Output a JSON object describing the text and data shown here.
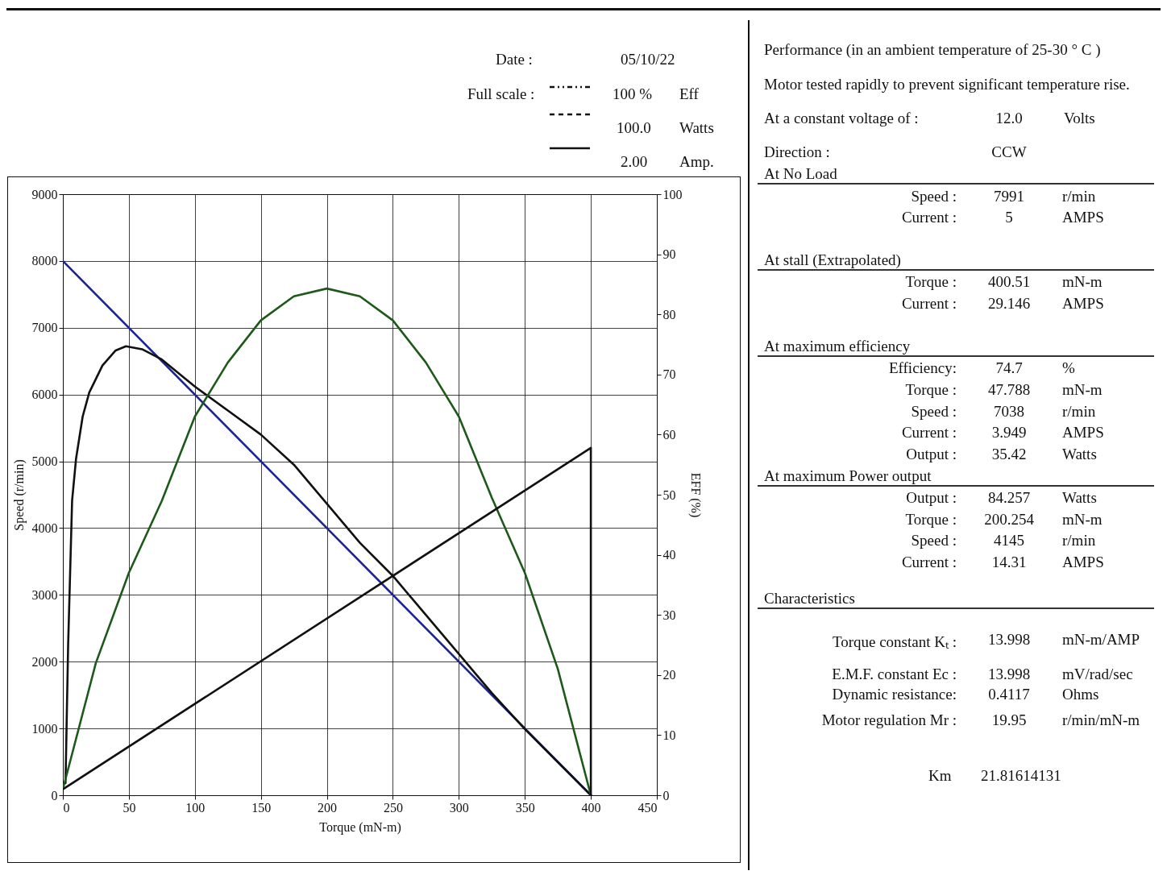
{
  "chart_data": [
    {
      "type": "line",
      "xlabel": "Torque (mN-m)",
      "ylabel": "Speed (r/min)",
      "y2label": "EFF (%)",
      "xlim": [
        0,
        450
      ],
      "xticks": [
        0,
        50,
        100,
        150,
        200,
        250,
        300,
        350,
        400,
        450
      ],
      "ylim": [
        0,
        9000
      ],
      "yticks": [
        0,
        1000,
        2000,
        3000,
        4000,
        5000,
        6000,
        7000,
        8000,
        9000
      ],
      "y2lim": [
        0,
        100
      ],
      "y2ticks": [
        0,
        10,
        20,
        30,
        40,
        50,
        60,
        70,
        80,
        90,
        100
      ],
      "grid": true,
      "annotations": [
        "Date  :",
        "05/10/22",
        "Full scale :",
        "100  %",
        "Eff",
        "100.0",
        "Watts",
        "2.00",
        "Amp."
      ],
      "series": [
        {
          "color": "#1c2596",
          "x": [
            0,
            400
          ],
          "values": [
            8000,
            0
          ]
        },
        {
          "color": "#111111",
          "axis": "y2",
          "x": [
            2,
            4,
            7,
            10,
            15,
            20,
            30,
            40,
            47.8,
            60,
            75,
            100,
            125,
            150,
            175,
            200,
            225,
            250,
            275,
            300,
            325,
            350,
            375,
            400
          ],
          "values": [
            2,
            25,
            49,
            56,
            63,
            67,
            71.5,
            74,
            74.7,
            74.2,
            72.5,
            68,
            64,
            60,
            55,
            48.5,
            42,
            36.5,
            30,
            23.5,
            17,
            11,
            5.5,
            0
          ]
        },
        {
          "color": "#1d5a1a",
          "axis": "y2",
          "x": [
            0,
            25,
            50,
            75,
            100,
            125,
            150,
            175,
            200,
            225,
            250,
            275,
            300,
            325,
            350,
            375,
            400
          ],
          "values": [
            1,
            22,
            37,
            49,
            63,
            72,
            79,
            83,
            84.3,
            83,
            79,
            72,
            63,
            49.5,
            37,
            21,
            0
          ]
        },
        {
          "color": "#111111",
          "axis": "y2",
          "x": [
            0,
            400,
            400
          ],
          "values": [
            1,
            57.8,
            0
          ]
        }
      ]
    },
    {
      "type": "other",
      "annotations": [
        "Performance (in an ambient temperature of 25-30 ° C )",
        "Motor tested rapidly to prevent significant temperature rise.",
        "At a constant voltage of :",
        "12.0",
        "Volts",
        "Direction  :",
        "CCW",
        "At No Load",
        "Speed  :",
        "7991",
        "r/min",
        "Current  :",
        "5",
        "AMPS",
        "At stall (Extrapolated)",
        "Torque  :",
        "400.51",
        "mN-m",
        "Current  :",
        "29.146",
        "AMPS",
        "At maximum efficiency",
        "Efficiency:",
        "74.7",
        "%",
        "Torque  :",
        "47.788",
        "mN-m",
        "Speed  :",
        "7038",
        "r/min",
        "Current  :",
        "3.949",
        "AMPS",
        "Output  :",
        "35.42",
        "Watts",
        "At maximum Power output",
        "Output  :",
        "84.257",
        "Watts",
        "Torque  :",
        "200.254",
        "mN-m",
        "Speed  :",
        "4145",
        "r/min",
        "Current  :",
        "14.31",
        "AMPS",
        "Characteristics",
        "Torque constant  Kₜ  :",
        "13.998",
        "mN-m/AMP",
        "E.M.F. constant  Ec  :",
        "13.998",
        "mV/rad/sec",
        "Dynamic resistance:",
        "0.4117",
        "Ohms",
        "Motor regulation  Mr  :",
        "19.95",
        "r/min/mN-m",
        "Km",
        "21.81614131"
      ]
    }
  ]
}
